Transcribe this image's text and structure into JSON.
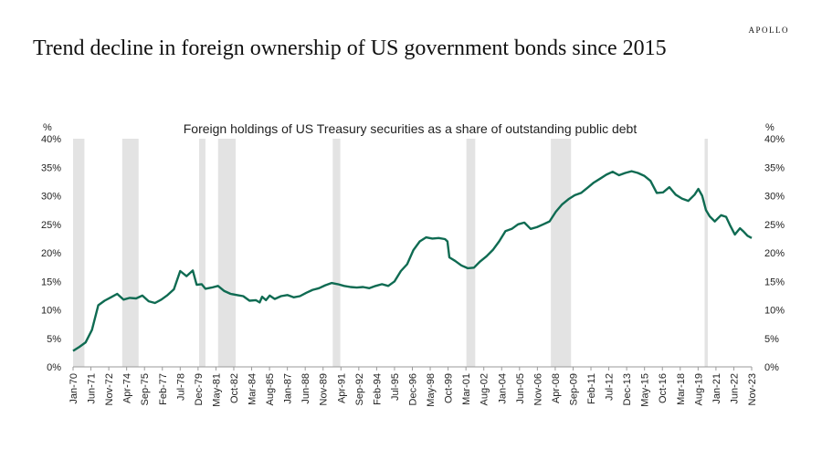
{
  "page": {
    "headline": "Trend decline in foreign ownership of US government bonds since 2015",
    "brand": "APOLLO"
  },
  "chart_data": {
    "type": "line",
    "title": "Foreign holdings of US Treasury securities as a share of outstanding public debt",
    "y_unit_left": "%",
    "y_unit_right": "%",
    "ylim": [
      0,
      40
    ],
    "yticks": [
      0,
      5,
      10,
      15,
      20,
      25,
      30,
      35,
      40
    ],
    "ytick_labels": [
      "0%",
      "5%",
      "10%",
      "15%",
      "20%",
      "25%",
      "30%",
      "35%",
      "40%"
    ],
    "xlim": [
      1970.0,
      2023.83
    ],
    "xtick_labels": [
      "Jan-70",
      "Jun-71",
      "Nov-72",
      "Apr-74",
      "Sep-75",
      "Feb-77",
      "Jul-78",
      "Dec-79",
      "May-81",
      "Oct-82",
      "Mar-84",
      "Aug-85",
      "Jan-87",
      "Jun-88",
      "Nov-89",
      "Apr-91",
      "Sep-92",
      "Feb-94",
      "Jul-95",
      "Dec-96",
      "May-98",
      "Oct-99",
      "Mar-01",
      "Aug-02",
      "Jan-04",
      "Jun-05",
      "Nov-06",
      "Apr-08",
      "Sep-09",
      "Feb-11",
      "Jul-12",
      "Dec-13",
      "May-15",
      "Oct-16",
      "Mar-18",
      "Aug-19",
      "Jan-21",
      "Jun-22",
      "Nov-23"
    ],
    "recessions": [
      [
        1970.0,
        1970.9
      ],
      [
        1973.9,
        1975.2
      ],
      [
        1980.0,
        1980.5
      ],
      [
        1981.5,
        1982.9
      ],
      [
        1990.6,
        1991.2
      ],
      [
        2001.2,
        2001.9
      ],
      [
        2007.9,
        2009.5
      ],
      [
        2020.1,
        2020.35
      ]
    ],
    "grid": false,
    "legend": "none",
    "series": [
      {
        "color": "#0f6b52",
        "points": [
          [
            1970.0,
            2.8
          ],
          [
            1970.5,
            3.5
          ],
          [
            1971.0,
            4.3
          ],
          [
            1971.5,
            6.5
          ],
          [
            1972.0,
            10.8
          ],
          [
            1972.5,
            11.6
          ],
          [
            1973.0,
            12.2
          ],
          [
            1973.5,
            12.8
          ],
          [
            1974.0,
            11.8
          ],
          [
            1974.5,
            12.1
          ],
          [
            1975.0,
            12.0
          ],
          [
            1975.5,
            12.5
          ],
          [
            1976.0,
            11.5
          ],
          [
            1976.5,
            11.2
          ],
          [
            1977.0,
            11.8
          ],
          [
            1977.5,
            12.6
          ],
          [
            1978.0,
            13.6
          ],
          [
            1978.5,
            16.8
          ],
          [
            1979.0,
            15.9
          ],
          [
            1979.5,
            16.9
          ],
          [
            1979.8,
            14.4
          ],
          [
            1980.2,
            14.5
          ],
          [
            1980.5,
            13.7
          ],
          [
            1981.0,
            13.9
          ],
          [
            1981.5,
            14.2
          ],
          [
            1982.0,
            13.3
          ],
          [
            1982.5,
            12.8
          ],
          [
            1983.0,
            12.6
          ],
          [
            1983.5,
            12.4
          ],
          [
            1984.0,
            11.6
          ],
          [
            1984.5,
            11.7
          ],
          [
            1984.8,
            11.3
          ],
          [
            1985.0,
            12.3
          ],
          [
            1985.3,
            11.7
          ],
          [
            1985.6,
            12.5
          ],
          [
            1986.0,
            11.9
          ],
          [
            1986.5,
            12.4
          ],
          [
            1987.0,
            12.6
          ],
          [
            1987.5,
            12.2
          ],
          [
            1988.0,
            12.4
          ],
          [
            1988.5,
            13.0
          ],
          [
            1989.0,
            13.5
          ],
          [
            1989.5,
            13.8
          ],
          [
            1990.0,
            14.3
          ],
          [
            1990.5,
            14.7
          ],
          [
            1991.0,
            14.5
          ],
          [
            1991.5,
            14.2
          ],
          [
            1992.0,
            14.0
          ],
          [
            1992.5,
            13.9
          ],
          [
            1993.0,
            14.0
          ],
          [
            1993.5,
            13.8
          ],
          [
            1994.0,
            14.2
          ],
          [
            1994.5,
            14.5
          ],
          [
            1995.0,
            14.2
          ],
          [
            1995.5,
            15.0
          ],
          [
            1996.0,
            16.8
          ],
          [
            1996.5,
            18.0
          ],
          [
            1997.0,
            20.5
          ],
          [
            1997.5,
            22.0
          ],
          [
            1998.0,
            22.7
          ],
          [
            1998.5,
            22.5
          ],
          [
            1999.0,
            22.6
          ],
          [
            1999.5,
            22.4
          ],
          [
            1999.7,
            22.0
          ],
          [
            1999.85,
            19.2
          ],
          [
            2000.3,
            18.6
          ],
          [
            2000.8,
            17.8
          ],
          [
            2001.3,
            17.3
          ],
          [
            2001.8,
            17.4
          ],
          [
            2002.3,
            18.5
          ],
          [
            2002.8,
            19.4
          ],
          [
            2003.3,
            20.5
          ],
          [
            2003.8,
            22.0
          ],
          [
            2004.3,
            23.8
          ],
          [
            2004.8,
            24.2
          ],
          [
            2005.3,
            25.0
          ],
          [
            2005.8,
            25.3
          ],
          [
            2006.3,
            24.2
          ],
          [
            2006.8,
            24.5
          ],
          [
            2007.3,
            25.0
          ],
          [
            2007.8,
            25.5
          ],
          [
            2008.3,
            27.2
          ],
          [
            2008.8,
            28.5
          ],
          [
            2009.3,
            29.4
          ],
          [
            2009.8,
            30.1
          ],
          [
            2010.3,
            30.5
          ],
          [
            2010.8,
            31.4
          ],
          [
            2011.3,
            32.3
          ],
          [
            2011.8,
            33.0
          ],
          [
            2012.3,
            33.7
          ],
          [
            2012.8,
            34.2
          ],
          [
            2013.3,
            33.6
          ],
          [
            2013.8,
            34.0
          ],
          [
            2014.3,
            34.3
          ],
          [
            2014.8,
            34.0
          ],
          [
            2015.3,
            33.5
          ],
          [
            2015.8,
            32.6
          ],
          [
            2016.3,
            30.5
          ],
          [
            2016.8,
            30.6
          ],
          [
            2017.3,
            31.5
          ],
          [
            2017.8,
            30.2
          ],
          [
            2018.3,
            29.5
          ],
          [
            2018.8,
            29.1
          ],
          [
            2019.3,
            30.2
          ],
          [
            2019.6,
            31.2
          ],
          [
            2019.9,
            30.0
          ],
          [
            2020.2,
            27.5
          ],
          [
            2020.5,
            26.4
          ],
          [
            2020.9,
            25.5
          ],
          [
            2021.4,
            26.6
          ],
          [
            2021.8,
            26.3
          ],
          [
            2022.1,
            24.9
          ],
          [
            2022.5,
            23.2
          ],
          [
            2022.9,
            24.3
          ],
          [
            2023.2,
            23.7
          ],
          [
            2023.5,
            23.0
          ],
          [
            2023.83,
            22.6
          ]
        ]
      }
    ]
  }
}
